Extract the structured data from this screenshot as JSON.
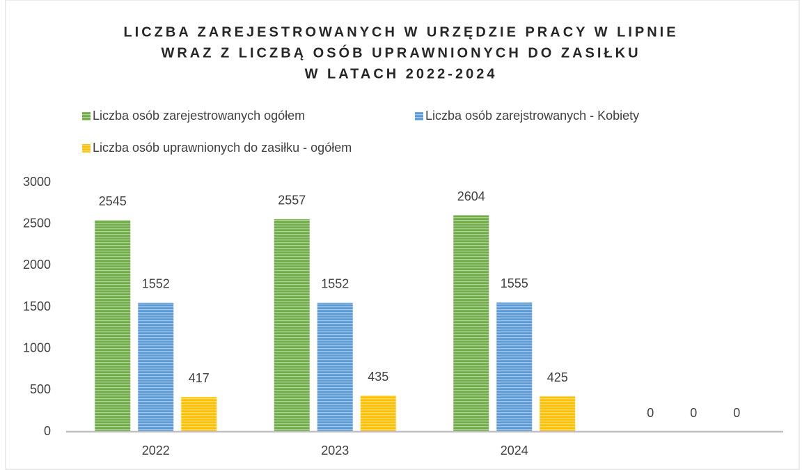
{
  "chart_data": {
    "type": "bar",
    "title": [
      "LICZBA ZAREJESTROWANYCH W URZĘDZIE PRACY W LIPNIE",
      "WRAZ Z LICZBĄ OSÓB UPRAWNIONYCH DO ZASIŁKU",
      "W LATACH 2022-2024"
    ],
    "categories": [
      "2022",
      "2023",
      "2024",
      null
    ],
    "series": [
      {
        "name": "Liczba osób zarejestrowanych ogółem",
        "color": "#70ad47",
        "values": [
          2545,
          2557,
          2604,
          0
        ]
      },
      {
        "name": "Liczba osób zarejstrowanych - Kobiety",
        "color": "#5b9bd5",
        "values": [
          1552,
          1552,
          1555,
          0
        ]
      },
      {
        "name": "Liczba osób uprawnionych do zasiłku - ogółem",
        "color": "#ffc000",
        "values": [
          417,
          435,
          425,
          0
        ]
      }
    ],
    "ylim": [
      0,
      3000
    ],
    "yticks": [
      0,
      500,
      1000,
      1500,
      2000,
      2500,
      3000
    ],
    "grid": false,
    "legend": "top"
  }
}
